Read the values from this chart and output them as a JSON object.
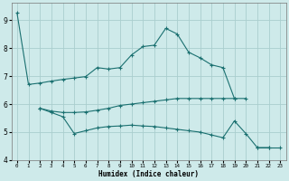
{
  "background_color": "#ceeaea",
  "grid_color": "#aacece",
  "line_color": "#1a7070",
  "xlabel": "Humidex (Indice chaleur)",
  "xlim": [
    -0.5,
    23.5
  ],
  "ylim": [
    4,
    9.6
  ],
  "yticks": [
    4,
    5,
    6,
    7,
    8,
    9
  ],
  "xtick_labels": [
    "0",
    "1",
    "2",
    "3",
    "4",
    "5",
    "6",
    "7",
    "8",
    "9",
    "10",
    "11",
    "12",
    "13",
    "14",
    "15",
    "16",
    "17",
    "18",
    "19",
    "20",
    "21",
    "22",
    "23"
  ],
  "series": [
    {
      "x": [
        0,
        1,
        2,
        3,
        4,
        5,
        6,
        7,
        8,
        9,
        10,
        11,
        12,
        13,
        14,
        15,
        16,
        17,
        18,
        19
      ],
      "y": [
        9.25,
        6.7,
        6.75,
        6.82,
        6.88,
        6.93,
        6.98,
        7.3,
        7.25,
        7.3,
        7.75,
        8.05,
        8.1,
        8.7,
        8.5,
        7.85,
        7.65,
        7.4,
        7.3,
        6.2
      ]
    },
    {
      "x": [
        2,
        3,
        4,
        5,
        6,
        7,
        8,
        9,
        10,
        11,
        12,
        13,
        14,
        15,
        16,
        17,
        18,
        19,
        20
      ],
      "y": [
        5.85,
        5.75,
        5.7,
        5.7,
        5.72,
        5.78,
        5.85,
        5.95,
        6.0,
        6.05,
        6.1,
        6.15,
        6.2,
        6.2,
        6.2,
        6.2,
        6.2,
        6.2,
        6.2
      ]
    },
    {
      "x": [
        2,
        3,
        4,
        5,
        6,
        7,
        8,
        9,
        10,
        11,
        12,
        13,
        14,
        15,
        16,
        17,
        18,
        19,
        20,
        21,
        22
      ],
      "y": [
        5.85,
        5.7,
        5.55,
        4.95,
        5.05,
        5.15,
        5.2,
        5.22,
        5.25,
        5.22,
        5.2,
        5.15,
        5.1,
        5.05,
        5.0,
        4.9,
        4.8,
        5.4,
        4.95,
        4.45,
        4.45
      ]
    },
    {
      "x": [
        21,
        22,
        23
      ],
      "y": [
        4.45,
        4.45,
        4.45
      ]
    }
  ]
}
